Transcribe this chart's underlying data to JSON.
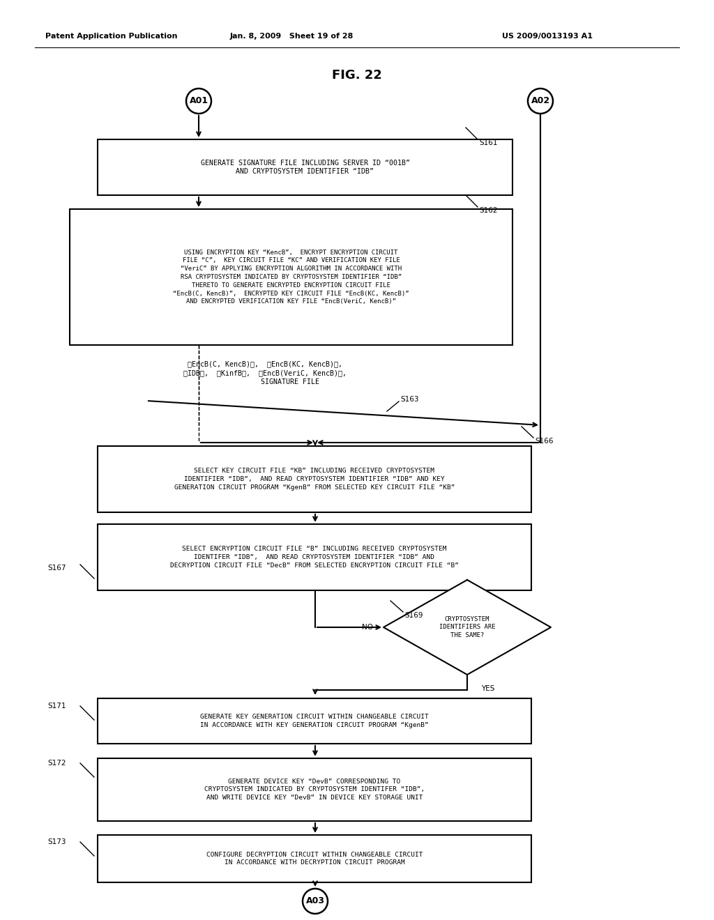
{
  "title": "FIG. 22",
  "header_left": "Patent Application Publication",
  "header_mid": "Jan. 8, 2009   Sheet 19 of 28",
  "header_right": "US 2009/0013193 A1",
  "bg_color": "#ffffff",
  "connector_A01": "A01",
  "connector_A02": "A02",
  "connector_A03": "A03",
  "step_labels": [
    "S161",
    "S162",
    "S163",
    "S166",
    "S167",
    "S169",
    "S171",
    "S172",
    "S173"
  ],
  "box1_text": "GENERATE SIGNATURE FILE INCLUDING SERVER ID “001B”\nAND CRYPTOSYSTEM IDENTIFIER “IDB”",
  "box2_text": "USING ENCRYPTION KEY “KencB”,  ENCRYPT ENCRYPTION CIRCUIT\nFILE “C”,  KEY CIRCUIT FILE “KC” AND VERIFICATION KEY FILE\n“VeriC” BY APPLYING ENCRYPTION ALGORITHM IN ACCORDANCE WITH\nRSA CRYPTOSYSTEM INDICATED BY CRYPTOSYSTEM IDENTIFIER “IDB”\nTHERETO TO GENERATE ENCRYPTED ENCRYPTION CIRCUIT FILE\n“EncB(C, KencB)”,  ENCRYPTED KEY CIRCUIT FILE “EncB(KC, KencB)”\nAND ENCRYPTED VERIFICATION KEY FILE “EncB(VeriC, KencB)”",
  "arrow_text_line1": "「EncB(C, KencB)」,  「EncB(KC, KencB)」,",
  "arrow_text_line2": "「IDB」,  「KinfB」,  「EncB(VeriC, KencB)」,",
  "arrow_text_line3": "SIGNATURE FILE",
  "box3_text": "SELECT KEY CIRCUIT FILE “KB” INCLUDING RECEIVED CRYPTOSYSTEM\nIDENTIFIER “IDB”,  AND READ CRYPTOSYSTEM IDENTIFIER “IDB” AND KEY\nGENERATION CIRCUIT PROGRAM “KgenB” FROM SELECTED KEY CIRCUIT FILE “KB”",
  "box4_text": "SELECT ENCRYPTION CIRCUIT FILE “B” INCLUDING RECEIVED CRYPTOSYSTEM\nIDENTIFER “IDB”,  AND READ CRYPTOSYSTEM IDENTIFIER “IDB” AND\nDECRYPTION CIRCUIT FILE “DecB” FROM SELECTED ENCRYPTION CIRCUIT FILE “B”",
  "diamond_text": "CRYPTOSYSTEM\nIDENTIFIERS ARE\nTHE SAME?",
  "no_label": "NO",
  "yes_label": "YES",
  "box5_text": "GENERATE KEY GENERATION CIRCUIT WITHIN CHANGEABLE CIRCUIT\nIN ACCORDANCE WITH KEY GENERATION CIRCUIT PROGRAM “KgenB”",
  "box6_text": "GENERATE DEVICE KEY “DevB” CORRESPONDING TO\nCRYPTOSYSTEM INDICATED BY CRYPTOSYSTEM IDENTIFER “IDB”,\nAND WRITE DEVICE KEY “DevB” IN DEVICE KEY STORAGE UNIT",
  "box7_text": "CONFIGURE DECRYPTION CIRCUIT WITHIN CHANGEABLE CIRCUIT\nIN ACCORDANCE WITH DECRYPTION CIRCUIT PROGRAM"
}
